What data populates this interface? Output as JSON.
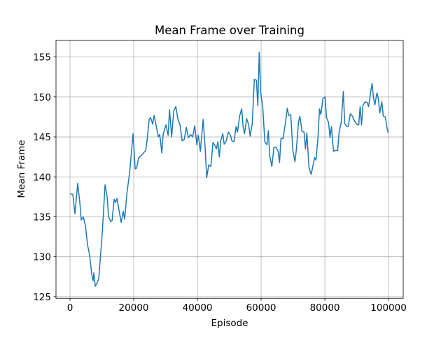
{
  "chart_data": {
    "type": "line",
    "title": "Mean Frame over Training",
    "xlabel": "Episode",
    "ylabel": "Mean Frame",
    "grid": true,
    "xlim": [
      -4400,
      104600
    ],
    "xticks": [
      0,
      20000,
      40000,
      60000,
      80000,
      100000
    ],
    "ylim": [
      124.8,
      157.1
    ],
    "yticks": [
      125,
      130,
      135,
      140,
      145,
      150,
      155
    ],
    "x": [
      0,
      880,
      1540,
      2420,
      3080,
      3520,
      4180,
      4840,
      5500,
      6160,
      6820,
      7260,
      7480,
      7920,
      8580,
      9020,
      9460,
      10120,
      11000,
      11660,
      12100,
      12760,
      13200,
      13860,
      14300,
      14740,
      15400,
      16060,
      16720,
      17160,
      17820,
      18700,
      19800,
      20460,
      20900,
      21560,
      22440,
      23100,
      23760,
      24200,
      24860,
      25300,
      25960,
      26400,
      27060,
      27720,
      28160,
      28820,
      29260,
      30140,
      30800,
      31240,
      31900,
      32560,
      33220,
      33880,
      34540,
      35200,
      35860,
      36520,
      37180,
      37840,
      38500,
      39160,
      39820,
      40260,
      40920,
      41800,
      42460,
      42900,
      43560,
      44220,
      44880,
      45540,
      45980,
      46420,
      46860,
      47300,
      47960,
      48400,
      49060,
      49720,
      50380,
      50820,
      51480,
      52140,
      52580,
      53240,
      53900,
      54340,
      54780,
      55440,
      56100,
      56540,
      57200,
      57860,
      58520,
      58960,
      59400,
      59840,
      60500,
      61160,
      61820,
      62260,
      62700,
      63360,
      64020,
      64680,
      65340,
      65780,
      66220,
      66880,
      67540,
      68200,
      68640,
      69300,
      69960,
      70620,
      71060,
      71720,
      72160,
      72820,
      73480,
      73920,
      74360,
      75020,
      75680,
      76120,
      76780,
      77220,
      77880,
      78320,
      78760,
      79420,
      80080,
      80520,
      81180,
      81620,
      82060,
      82720,
      83380,
      84040,
      84480,
      85140,
      85800,
      86240,
      86900,
      87340,
      88000,
      88660,
      89320,
      89980,
      90640,
      91080,
      91520,
      91960,
      92620,
      93280,
      93720,
      94380,
      94820,
      95260,
      95700,
      96360,
      96800,
      97240,
      97900,
      98340,
      99000,
      99440,
      99880
    ],
    "series": [
      {
        "color": "#1f77b4",
        "values": [
          137.9,
          137.8,
          135.4,
          139.2,
          136.8,
          134.6,
          135.0,
          133.9,
          131.5,
          130.2,
          127.8,
          127.0,
          128.0,
          126.3,
          126.8,
          127.3,
          129.5,
          133.0,
          139.0,
          137.5,
          135.0,
          134.4,
          134.5,
          137.2,
          136.8,
          137.3,
          135.8,
          134.3,
          135.7,
          134.7,
          137.8,
          140.5,
          145.4,
          141.0,
          141.1,
          142.4,
          142.7,
          143.0,
          143.3,
          144.6,
          147.2,
          147.4,
          146.6,
          147.7,
          146.4,
          145.0,
          145.3,
          143.0,
          145.4,
          146.5,
          145.2,
          148.4,
          145.0,
          148.2,
          148.8,
          147.2,
          146.5,
          144.5,
          144.7,
          146.2,
          144.9,
          145.3,
          145.0,
          146.4,
          144.0,
          145.2,
          143.2,
          147.2,
          143.4,
          139.9,
          141.5,
          141.3,
          144.3,
          143.9,
          143.5,
          144.4,
          142.5,
          144.5,
          145.4,
          144.1,
          144.5,
          145.6,
          145.2,
          144.5,
          144.4,
          146.3,
          145.6,
          147.6,
          148.5,
          146.3,
          145.4,
          147.3,
          146.5,
          145.1,
          146.6,
          152.2,
          152.1,
          148.9,
          155.6,
          150.6,
          148.8,
          144.4,
          144.0,
          145.8,
          142.6,
          141.3,
          143.7,
          143.7,
          143.2,
          141.8,
          144.8,
          144.8,
          146.5,
          148.6,
          147.7,
          147.8,
          143.3,
          141.9,
          143.4,
          146.8,
          147.6,
          145.7,
          145.6,
          143.5,
          145.5,
          141.2,
          140.3,
          141.1,
          142.4,
          142.1,
          145.1,
          148.5,
          147.8,
          149.8,
          150.0,
          147.4,
          146.8,
          144.9,
          146.3,
          143.2,
          143.3,
          143.3,
          145.6,
          146.8,
          150.7,
          146.7,
          146.3,
          146.3,
          147.9,
          147.6,
          147.0,
          146.6,
          146.5,
          148.8,
          146.5,
          148.9,
          149.4,
          149.3,
          148.8,
          150.6,
          151.7,
          150.0,
          149.0,
          150.5,
          149.8,
          148.0,
          149.4,
          147.6,
          147.5,
          146.3,
          145.5
        ]
      }
    ]
  }
}
